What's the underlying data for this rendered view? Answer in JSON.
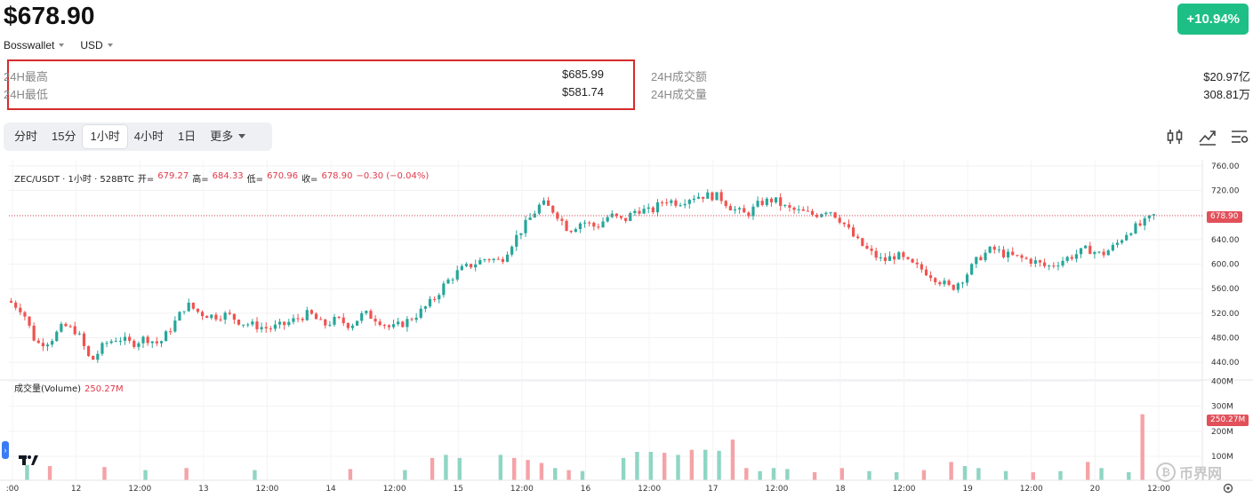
{
  "header": {
    "price": "$678.90",
    "change_badge": "+10.94%",
    "exchange_selector": "Bosswallet",
    "currency_selector": "USD"
  },
  "stats": {
    "high_label": "24H最高",
    "high_value": "$685.99",
    "low_label": "24H最低",
    "low_value": "$581.74",
    "turnover_label": "24H成交额",
    "turnover_value": "$20.97亿",
    "volume_label": "24H成交量",
    "volume_value": "308.81万"
  },
  "timeframes": [
    "分时",
    "15分",
    "1小时",
    "4小时",
    "1日"
  ],
  "active_timeframe": "1小时",
  "more_label": "更多",
  "tools": [
    "indicator-icon",
    "line-chart-icon",
    "settings-list-icon"
  ],
  "legend": {
    "symbol": "ZEC/USDT · 1小时 · 528BTC",
    "open_label": "开=",
    "open_value": "679.27",
    "high_label": "高=",
    "high_value": "684.33",
    "low_label": "低=",
    "low_value": "670.96",
    "close_label": "收=",
    "close_value": "678.90",
    "change_value": "−0.30 (−0.04%)"
  },
  "volume_legend": {
    "label": "成交量(Volume)",
    "value": "250.27M"
  },
  "price_tag": "678.90",
  "volume_tag": "250.27M",
  "watermark": "币界网",
  "colors": {
    "up": "#26a69a",
    "down": "#ef5350",
    "badge": "#1ebf86",
    "highlight_box": "#d62b2b"
  },
  "chart_data": {
    "type": "candlestick",
    "price_axis": {
      "ylim": [
        420,
        770
      ],
      "ticks": [
        "760.00",
        "720.00",
        "680.00",
        "640.00",
        "600.00",
        "560.00",
        "520.00",
        "480.00",
        "440.00"
      ]
    },
    "volume_axis": {
      "ticks": [
        "400M",
        "300M",
        "200M",
        "100M"
      ]
    },
    "x_ticks": [
      ":00",
      "12",
      "12:00",
      "13",
      "12:00",
      "14",
      "12:00",
      "15",
      "12:00",
      "16",
      "12:00",
      "17",
      "12:00",
      "18",
      "12:00",
      "19",
      "12:00",
      "20",
      "12:00"
    ],
    "close_path": [
      [
        0,
        540
      ],
      [
        6,
        525
      ],
      [
        12,
        470
      ],
      [
        18,
        475
      ],
      [
        24,
        500
      ],
      [
        30,
        490
      ],
      [
        36,
        440
      ],
      [
        42,
        470
      ],
      [
        48,
        480
      ],
      [
        54,
        470
      ],
      [
        60,
        480
      ],
      [
        66,
        470
      ],
      [
        72,
        500
      ],
      [
        78,
        535
      ],
      [
        84,
        520
      ],
      [
        90,
        515
      ],
      [
        96,
        518
      ],
      [
        102,
        505
      ],
      [
        108,
        500
      ],
      [
        114,
        495
      ],
      [
        120,
        500
      ],
      [
        126,
        510
      ],
      [
        132,
        520
      ],
      [
        138,
        500
      ],
      [
        144,
        510
      ],
      [
        150,
        500
      ],
      [
        156,
        520
      ],
      [
        162,
        510
      ],
      [
        168,
        495
      ],
      [
        174,
        505
      ],
      [
        180,
        520
      ],
      [
        186,
        540
      ],
      [
        192,
        570
      ],
      [
        198,
        590
      ],
      [
        204,
        600
      ],
      [
        210,
        610
      ],
      [
        216,
        605
      ],
      [
        222,
        640
      ],
      [
        228,
        670
      ],
      [
        234,
        700
      ],
      [
        240,
        685
      ],
      [
        246,
        655
      ],
      [
        252,
        670
      ],
      [
        258,
        660
      ],
      [
        264,
        680
      ],
      [
        270,
        670
      ],
      [
        276,
        690
      ],
      [
        282,
        685
      ],
      [
        288,
        705
      ],
      [
        294,
        700
      ],
      [
        300,
        710
      ],
      [
        306,
        712
      ],
      [
        312,
        710
      ],
      [
        318,
        690
      ],
      [
        324,
        680
      ],
      [
        330,
        700
      ],
      [
        336,
        705
      ],
      [
        342,
        690
      ],
      [
        348,
        685
      ],
      [
        354,
        680
      ],
      [
        360,
        690
      ],
      [
        366,
        670
      ],
      [
        372,
        640
      ],
      [
        378,
        620
      ],
      [
        384,
        605
      ],
      [
        390,
        615
      ],
      [
        396,
        600
      ],
      [
        402,
        590
      ],
      [
        408,
        575
      ],
      [
        414,
        560
      ],
      [
        420,
        580
      ],
      [
        426,
        610
      ],
      [
        432,
        625
      ],
      [
        438,
        615
      ],
      [
        444,
        610
      ],
      [
        450,
        605
      ],
      [
        456,
        595
      ],
      [
        462,
        605
      ],
      [
        468,
        615
      ],
      [
        474,
        625
      ],
      [
        480,
        615
      ],
      [
        486,
        630
      ],
      [
        492,
        655
      ],
      [
        498,
        665
      ],
      [
        503,
        678.9
      ]
    ],
    "volume_bars": [
      [
        8,
        15,
        1
      ],
      [
        18,
        14,
        0
      ],
      [
        42,
        13,
        0
      ],
      [
        60,
        10,
        1
      ],
      [
        78,
        12,
        0
      ],
      [
        108,
        10,
        1
      ],
      [
        150,
        11,
        0
      ],
      [
        174,
        10,
        1
      ],
      [
        186,
        22,
        0
      ],
      [
        192,
        25,
        1
      ],
      [
        198,
        22,
        1
      ],
      [
        216,
        25,
        1
      ],
      [
        222,
        22,
        0
      ],
      [
        228,
        20,
        0
      ],
      [
        234,
        17,
        0
      ],
      [
        240,
        12,
        1
      ],
      [
        246,
        10,
        0
      ],
      [
        252,
        9,
        1
      ],
      [
        270,
        22,
        1
      ],
      [
        276,
        28,
        1
      ],
      [
        282,
        28,
        1
      ],
      [
        288,
        27,
        0
      ],
      [
        294,
        25,
        1
      ],
      [
        300,
        30,
        0
      ],
      [
        306,
        30,
        1
      ],
      [
        312,
        29,
        1
      ],
      [
        318,
        40,
        0
      ],
      [
        324,
        12,
        0
      ],
      [
        330,
        9,
        1
      ],
      [
        336,
        12,
        1
      ],
      [
        342,
        11,
        1
      ],
      [
        354,
        8,
        0
      ],
      [
        366,
        12,
        0
      ],
      [
        378,
        9,
        1
      ],
      [
        390,
        8,
        1
      ],
      [
        402,
        10,
        0
      ],
      [
        414,
        18,
        0
      ],
      [
        420,
        14,
        1
      ],
      [
        426,
        12,
        1
      ],
      [
        438,
        9,
        1
      ],
      [
        450,
        8,
        0
      ],
      [
        462,
        9,
        1
      ],
      [
        474,
        18,
        0
      ],
      [
        480,
        12,
        1
      ],
      [
        492,
        8,
        1
      ],
      [
        498,
        65,
        0
      ]
    ]
  }
}
